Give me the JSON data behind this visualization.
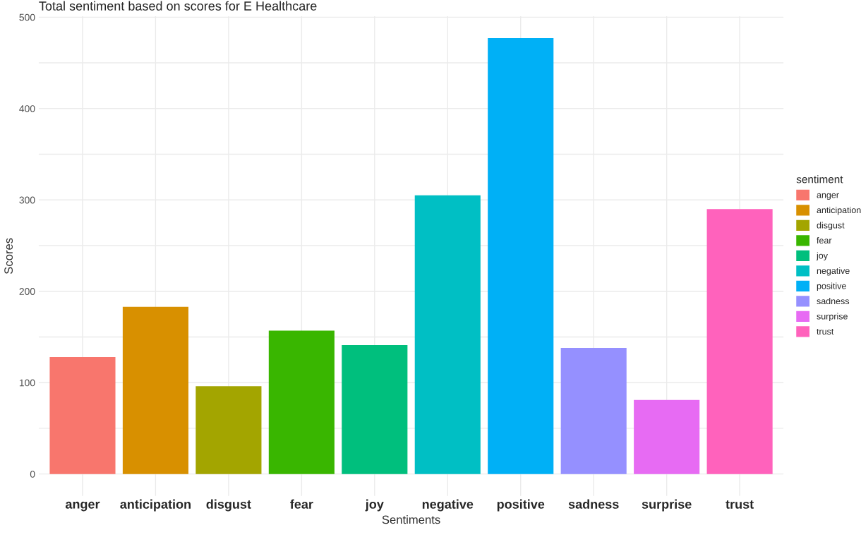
{
  "chart_data": {
    "type": "bar",
    "title": "Total sentiment based on scores for E Healthcare",
    "xlabel": "Sentiments",
    "ylabel": "Scores",
    "legend_title": "sentiment",
    "categories": [
      "anger",
      "anticipation",
      "disgust",
      "fear",
      "joy",
      "negative",
      "positive",
      "sadness",
      "surprise",
      "trust"
    ],
    "series": [
      {
        "name": "anger",
        "color": "#f8766d",
        "values": [
          128,
          null,
          null,
          null,
          null,
          null,
          null,
          null,
          null,
          null
        ]
      },
      {
        "name": "anticipation",
        "color": "#d89000",
        "values": [
          null,
          183,
          null,
          null,
          null,
          null,
          null,
          null,
          null,
          null
        ]
      },
      {
        "name": "disgust",
        "color": "#a3a500",
        "values": [
          null,
          null,
          96,
          null,
          null,
          null,
          null,
          null,
          null,
          null
        ]
      },
      {
        "name": "fear",
        "color": "#39b600",
        "values": [
          null,
          null,
          null,
          157,
          null,
          null,
          null,
          null,
          null,
          null
        ]
      },
      {
        "name": "joy",
        "color": "#00bf7d",
        "values": [
          null,
          null,
          null,
          null,
          141,
          null,
          null,
          null,
          null,
          null
        ]
      },
      {
        "name": "negative",
        "color": "#00bfc4",
        "values": [
          null,
          null,
          null,
          null,
          null,
          305,
          null,
          null,
          null,
          null
        ]
      },
      {
        "name": "positive",
        "color": "#00b0f6",
        "values": [
          null,
          null,
          null,
          null,
          null,
          null,
          477,
          null,
          null,
          null
        ]
      },
      {
        "name": "sadness",
        "color": "#9590ff",
        "values": [
          null,
          null,
          null,
          null,
          null,
          null,
          null,
          138,
          null,
          null
        ]
      },
      {
        "name": "surprise",
        "color": "#e76bf3",
        "values": [
          null,
          null,
          null,
          null,
          null,
          null,
          null,
          null,
          81,
          null
        ]
      },
      {
        "name": "trust",
        "color": "#ff62bc",
        "values": [
          null,
          null,
          null,
          null,
          null,
          null,
          null,
          null,
          null,
          290
        ]
      }
    ],
    "ylim": [
      -24,
      501
    ],
    "yticks": [
      0,
      {
        "value": 50,
        "label": null
      },
      100,
      {
        "value": 150,
        "label": null
      },
      200,
      {
        "value": 250,
        "label": null
      },
      300,
      {
        "value": 350,
        "label": null
      },
      400,
      {
        "value": 450,
        "label": null
      },
      500
    ],
    "grid": true,
    "legend": "right"
  }
}
